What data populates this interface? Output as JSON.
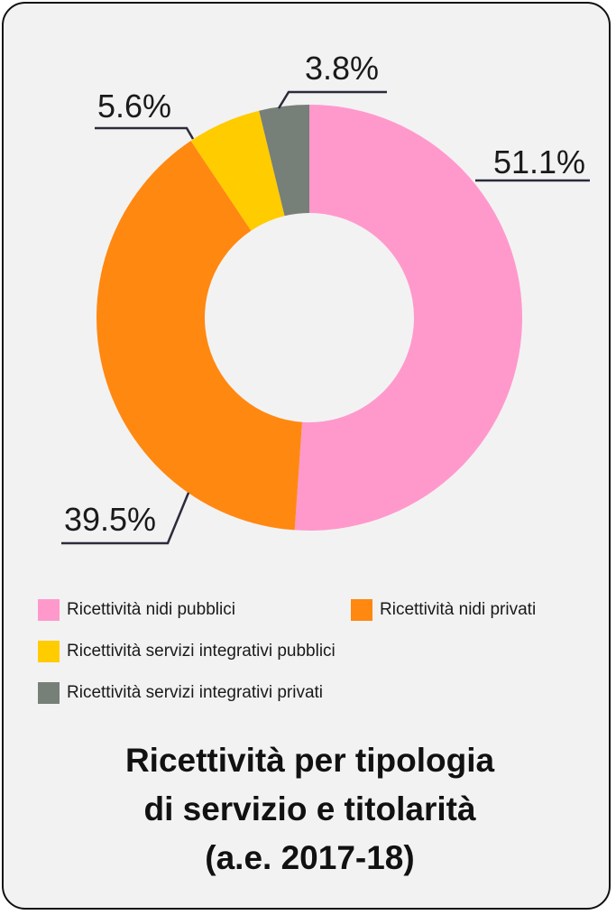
{
  "chart_data": {
    "type": "pie",
    "variant": "donut",
    "slices": [
      {
        "label": "Ricettività nidi pubblici",
        "value": 51.1,
        "display": "51.1%",
        "color": "#ff99cc"
      },
      {
        "label": "Ricettività nidi privati",
        "value": 39.5,
        "display": "39.5%",
        "color": "#ff8811"
      },
      {
        "label": "Ricettività servizi integrativi pubblici",
        "value": 5.6,
        "display": "5.6%",
        "color": "#ffcc00"
      },
      {
        "label": "Ricettività servizi integrativi privati",
        "value": 3.8,
        "display": "3.8%",
        "color": "#767f78"
      }
    ],
    "title_lines": [
      "Ricettività per tipologia",
      "di servizio e titolarità",
      "(a.e. 2017-18)"
    ],
    "legend_position": "bottom"
  }
}
